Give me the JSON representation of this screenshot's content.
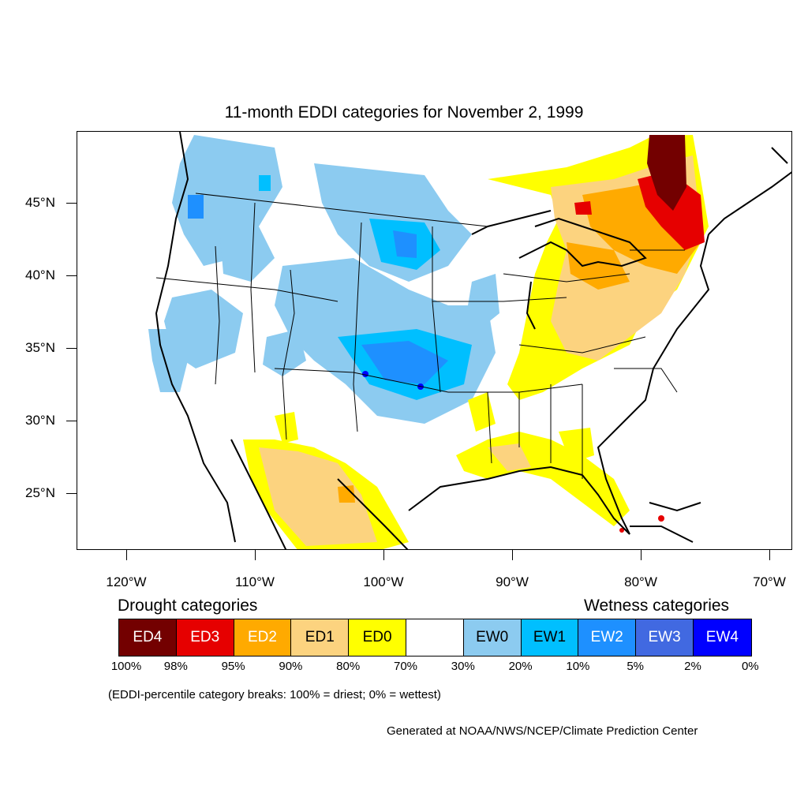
{
  "title": "11-month EDDI categories for November 2, 1999",
  "lat_labels": [
    "45°N",
    "40°N",
    "35°N",
    "30°N",
    "25°N"
  ],
  "lon_labels": [
    "120°W",
    "110°W",
    "100°W",
    "90°W",
    "80°W",
    "70°W"
  ],
  "legend": {
    "drought_heading": "Drought categories",
    "wetness_heading": "Wetness categories",
    "categories": [
      {
        "label": "ED4",
        "color": "#730000",
        "text_color": "#ffffff"
      },
      {
        "label": "ED3",
        "color": "#e60000",
        "text_color": "#ffffff"
      },
      {
        "label": "ED2",
        "color": "#ffaa00",
        "text_color": "#ffffff"
      },
      {
        "label": "ED1",
        "color": "#fcd37f",
        "text_color": "#000000"
      },
      {
        "label": "ED0",
        "color": "#ffff00",
        "text_color": "#000000"
      },
      {
        "label": "",
        "color": "#ffffff",
        "text_color": "#000000"
      },
      {
        "label": "EW0",
        "color": "#8ccbf0",
        "text_color": "#000000"
      },
      {
        "label": "EW1",
        "color": "#00bfff",
        "text_color": "#000000"
      },
      {
        "label": "EW2",
        "color": "#1e90ff",
        "text_color": "#ffffff"
      },
      {
        "label": "EW3",
        "color": "#4169e1",
        "text_color": "#ffffff"
      },
      {
        "label": "EW4",
        "color": "#0000ff",
        "text_color": "#ffffff"
      }
    ],
    "breaks": [
      "100%",
      "98%",
      "95%",
      "90%",
      "80%",
      "70%",
      "30%",
      "20%",
      "10%",
      "5%",
      "2%",
      "0%"
    ]
  },
  "note": "(EDDI-percentile category breaks: 100% = driest; 0% = wettest)",
  "credit": "Generated at NOAA/NWS/NCEP/Climate Prediction Center"
}
